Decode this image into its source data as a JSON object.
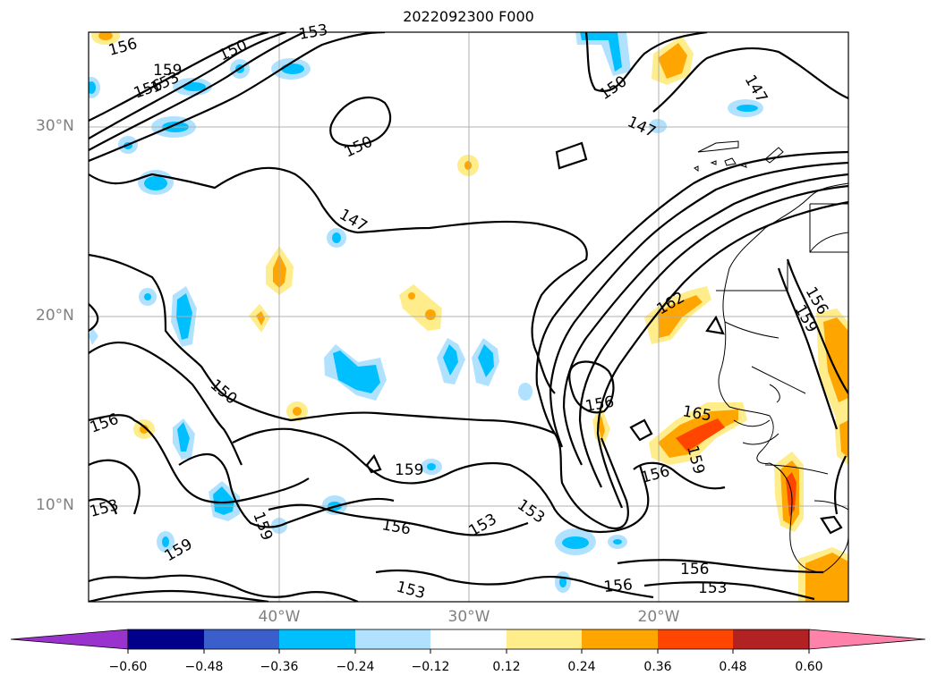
{
  "title": "2022092300 F000",
  "map": {
    "lat_labels": [
      {
        "text": "30°N",
        "lat": 30
      },
      {
        "text": "20°N",
        "lat": 20
      },
      {
        "text": "10°N",
        "lat": 10
      }
    ],
    "lon_labels": [
      {
        "text": "40°W",
        "lon": -40
      },
      {
        "text": "30°W",
        "lon": -30
      },
      {
        "text": "20°W",
        "lon": -20
      }
    ],
    "contour_labels": [
      "156",
      "159",
      "150",
      "153",
      "156",
      "153",
      "150",
      "147",
      "147",
      "150",
      "147",
      "156",
      "159",
      "162",
      "150",
      "156",
      "156",
      "165",
      "159",
      "159",
      "156",
      "156",
      "153",
      "153",
      "159",
      "153",
      "153",
      "159",
      "156",
      "156",
      "153"
    ]
  },
  "colorbar": {
    "bins": [
      "#9a32cd",
      "#00008b",
      "#3a5fcd",
      "#00bfff",
      "#b0e2ff",
      "#ffffff",
      "#ffec8b",
      "#ffa500",
      "#ff4500",
      "#b22222",
      "#ff82ab"
    ],
    "ticks": [
      "−0.60",
      "−0.48",
      "−0.36",
      "−0.24",
      "−0.12",
      "0.12",
      "0.24",
      "0.36",
      "0.48",
      "0.60"
    ]
  },
  "colors": {
    "light_blue": "#b0e2ff",
    "blue": "#00bfff",
    "yellow": "#ffec8b",
    "orange": "#ffa500",
    "red": "#ff4500",
    "grid": "#b0b0b0",
    "tick_label": "#808080"
  }
}
